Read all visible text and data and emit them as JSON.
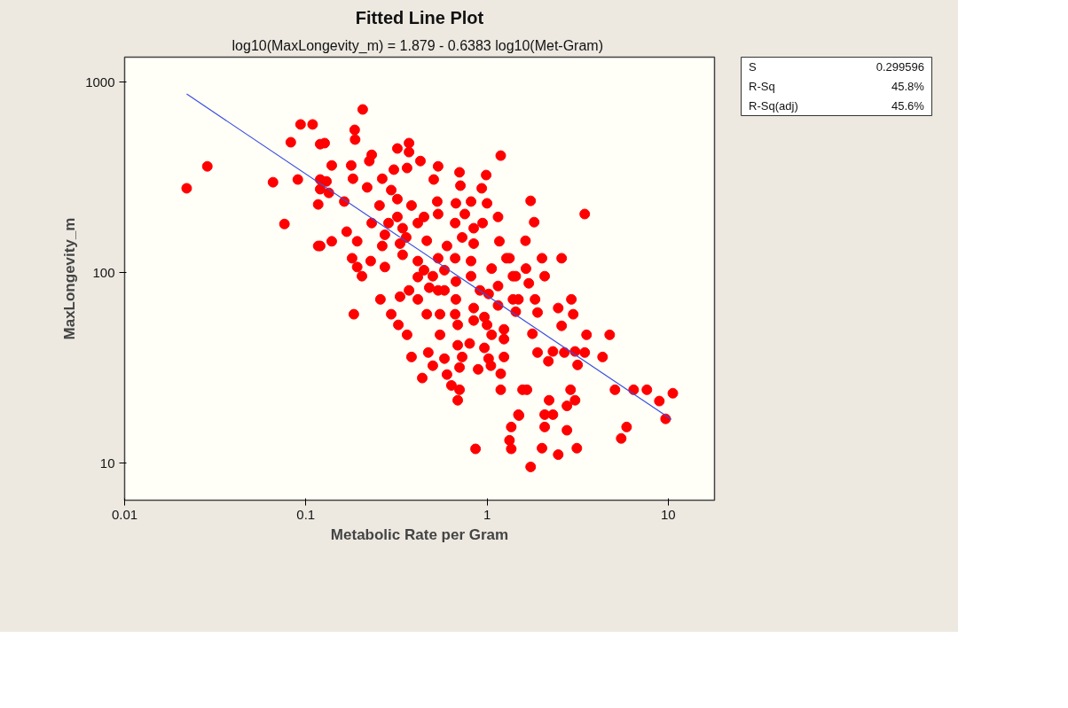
{
  "chart_data": {
    "type": "scatter",
    "title": "Fitted Line Plot",
    "subtitle": "log10(MaxLongevity_m) =  1.879 - 0.6383 log10(Met-Gram)",
    "xlabel": "Metabolic Rate per Gram",
    "ylabel": "MaxLongevity_m",
    "log": "xy",
    "xlim": [
      0.01,
      18
    ],
    "ylim": [
      6.4,
      1350
    ],
    "xticks": [
      0.01,
      0.1,
      1,
      10
    ],
    "yticks": [
      10,
      100,
      1000
    ],
    "grid": false,
    "annotations": [
      "S",
      "0.299596",
      "R-Sq",
      "45.8%",
      "R-Sq(adj)",
      "45.6%"
    ],
    "series": [
      {
        "color": "#ff0000",
        "marker": "circle",
        "x": [
          0.022,
          0.0286,
          0.0659,
          0.0762,
          0.0826,
          0.0935,
          0.109,
          0.0903,
          0.117,
          0.12,
          0.12,
          0.117,
          0.184,
          0.12,
          0.206,
          0.186,
          0.187,
          0.127,
          0.231,
          0.224,
          0.32,
          0.371,
          0.371,
          0.429,
          0.537,
          0.306,
          0.362,
          0.139,
          0.178,
          0.705,
          0.989,
          1.19,
          0.508,
          0.713,
          0.935,
          0.264,
          0.182,
          0.13,
          0.134,
          0.163,
          0.218,
          0.296,
          0.32,
          0.255,
          0.383,
          0.449,
          0.531,
          0.537,
          0.673,
          0.816,
          1.0,
          0.754,
          1.15,
          0.231,
          0.286,
          0.32,
          0.342,
          0.415,
          0.273,
          0.358,
          0.465,
          0.667,
          0.844,
          0.945,
          0.729,
          0.844,
          1.17,
          0.168,
          0.139,
          0.12,
          0.192,
          0.264,
          0.331,
          0.601,
          0.18,
          0.228,
          0.192,
          0.204,
          0.273,
          0.342,
          0.415,
          0.449,
          0.415,
          0.502,
          0.537,
          0.667,
          0.582,
          0.816,
          0.816,
          0.673,
          1.06,
          1.15,
          1.39,
          1.28,
          0.48,
          0.582,
          0.914,
          1.02,
          1.39,
          1.15,
          0.844,
          0.673,
          0.537,
          0.371,
          0.331,
          0.258,
          0.415,
          0.296,
          0.324,
          0.362,
          0.465,
          0.55,
          0.667,
          0.689,
          0.55,
          0.844,
          0.967,
          1.0,
          1.24,
          1.06,
          1.24,
          0.689,
          0.802,
          0.967,
          0.383,
          0.474,
          0.582,
          0.729,
          1.02,
          1.24,
          0.502,
          0.705,
          0.893,
          1.05,
          0.439,
          0.601,
          0.636,
          0.705,
          0.689,
          1.19,
          1.19,
          1.57,
          1.49,
          1.36,
          1.33,
          1.36,
          0.864,
          1.74,
          1.82,
          3.46,
          1.63,
          1.33,
          2.01,
          2.58,
          1.44,
          1.64,
          2.08,
          1.7,
          1.49,
          1.84,
          2.92,
          1.44,
          1.9,
          2.47,
          2.99,
          2.58,
          1.78,
          3.54,
          4.75,
          1.9,
          2.31,
          2.67,
          3.06,
          3.46,
          2.18,
          3.16,
          4.34,
          1.66,
          2.89,
          5.08,
          6.44,
          7.62,
          10.6,
          8.93,
          9.67,
          2.2,
          3.06,
          2.76,
          1.5,
          2.08,
          2.31,
          2.08,
          2.76,
          5.89,
          5.5,
          2.01,
          3.13,
          2.47,
          1.74
        ],
        "values": [
          277,
          361,
          298,
          180,
          483,
          599,
          599,
          308,
          138,
          472,
          308,
          228,
          60.5,
          274,
          718,
          561,
          499,
          478,
          415,
          385,
          448,
          478,
          429,
          385,
          361,
          347,
          354,
          365,
          365,
          336,
          325,
          411,
          308,
          286,
          277,
          311,
          311,
          301,
          262,
          236,
          280,
          271,
          243,
          225,
          225,
          196,
          236,
          203,
          231,
          236,
          231,
          203,
          196,
          182,
          182,
          196,
          171,
          182,
          158,
          153,
          147,
          182,
          171,
          182,
          153,
          142,
          146,
          164,
          146,
          138,
          146,
          138,
          142,
          138,
          119,
          115,
          107,
          95.8,
          107,
          124,
          115,
          103,
          94.8,
          95.8,
          119,
          119,
          103,
          115,
          95.8,
          89.8,
          105,
          85.1,
          95.8,
          119,
          83.4,
          80.7,
          80.7,
          77.3,
          72.4,
          67.3,
          65.2,
          72.4,
          80.7,
          80.7,
          74.8,
          72.4,
          72.4,
          60.5,
          53.2,
          47.2,
          60.5,
          60.5,
          60.5,
          53.2,
          47.2,
          56.1,
          58.5,
          53.2,
          50.4,
          47.2,
          44.8,
          41.6,
          42.5,
          40.3,
          36.1,
          38.1,
          35.4,
          36.1,
          35.4,
          36.1,
          32.5,
          31.8,
          31.1,
          32.5,
          28.0,
          29.2,
          25.6,
          24.3,
          21.4,
          29.5,
          24.3,
          24.3,
          18.0,
          15.5,
          13.2,
          11.9,
          11.9,
          238,
          184,
          203,
          147,
          119,
          119,
          119,
          95.8,
          105,
          95.8,
          87.9,
          72.4,
          72.4,
          72.4,
          62.4,
          61.8,
          65.2,
          60.5,
          52.6,
          47.8,
          47.2,
          47.2,
          38.1,
          38.6,
          38.1,
          38.6,
          38.1,
          34.3,
          32.8,
          36.1,
          24.3,
          24.3,
          24.3,
          24.3,
          24.3,
          23.3,
          21.2,
          17.1,
          21.4,
          21.4,
          20.0,
          17.8,
          18.0,
          18.0,
          15.5,
          14.9,
          15.5,
          13.5,
          12.0,
          12.0,
          11.1,
          9.57
        ]
      },
      {
        "type": "line",
        "color": "#3b4fe0",
        "line_style": "solid",
        "x": [
          0.022,
          10.4
        ],
        "values": [
          865,
          17.0
        ]
      }
    ]
  }
}
